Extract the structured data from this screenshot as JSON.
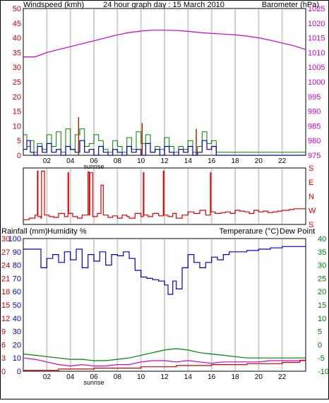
{
  "title": "24 hour graph day : 15 March 2010",
  "colors": {
    "wind": "#cc0000",
    "baro": "#cc00cc",
    "humidity": "#0000cc",
    "temp": "#008000",
    "rain": "#cc0000",
    "dew": "#cc0000",
    "windspeed": "#0000aa",
    "gust": "#008000",
    "gust_peak": "#993300",
    "direction": "#dd0000",
    "rain_line": "#cc0000",
    "temp_line": "#008000",
    "dew_line": "#cc00cc",
    "grid": "#d0d0d0",
    "frame": "#000000"
  },
  "x_ticks": [
    "02",
    "04",
    "06",
    "08",
    "10",
    "12",
    "14",
    "16",
    "18",
    "20",
    "22"
  ],
  "sunrise_label": "sunrise",
  "chart_data": [
    {
      "type": "line",
      "name": "wind-barometer",
      "left_label": "Windspeed (kmh)",
      "right_label": "Barometer (hPa)",
      "left_ticks": [
        "0",
        "5",
        "10",
        "15",
        "20",
        "25",
        "30",
        "35",
        "40",
        "45",
        "50"
      ],
      "right_ticks": [
        "975",
        "980",
        "985",
        "990",
        "995",
        "1000",
        "1005",
        "1010",
        "1015",
        "1020",
        "1025"
      ],
      "ylim_left": [
        0,
        50
      ],
      "ylim_right": [
        975,
        1025
      ],
      "xlim": [
        0,
        24
      ],
      "barometer": {
        "x": [
          0,
          1,
          2,
          3,
          4,
          5,
          6,
          7,
          8,
          9,
          10,
          11,
          12,
          13,
          14,
          15,
          16,
          17,
          18,
          19,
          20,
          21,
          22,
          23,
          24
        ],
        "y": [
          1008.5,
          1008.5,
          1010,
          1011,
          1012,
          1013,
          1014,
          1015,
          1016,
          1016.8,
          1017.3,
          1017.6,
          1017.6,
          1017.5,
          1017.2,
          1016.8,
          1016.5,
          1016.3,
          1016,
          1015.6,
          1015,
          1014.2,
          1013.2,
          1012.3,
          1011
        ]
      },
      "windspeed": {
        "x": [
          0,
          0.3,
          0.6,
          0.9,
          1.2,
          1.6,
          2,
          2.4,
          2.8,
          3.2,
          3.6,
          4,
          4.4,
          4.8,
          5.2,
          5.6,
          6,
          6.4,
          6.8,
          7.2,
          7.6,
          8,
          8.4,
          8.8,
          9.2,
          9.6,
          10,
          10.4,
          10.8,
          11.2,
          11.6,
          12,
          12.4,
          12.8,
          13.2,
          13.6,
          14,
          14.4,
          14.8,
          15.2,
          15.6,
          16,
          16.4,
          17,
          24
        ],
        "y": [
          2,
          5,
          1,
          0,
          3,
          1,
          4,
          1,
          2,
          0,
          3,
          2,
          1,
          5,
          1,
          2,
          0,
          3,
          1,
          0,
          2,
          1,
          0,
          3,
          1,
          2,
          0,
          4,
          1,
          2,
          0,
          3,
          1,
          0,
          2,
          1,
          3,
          0,
          1,
          5,
          2,
          3,
          0,
          0,
          0
        ]
      },
      "gust": {
        "x": [
          0,
          0.3,
          0.6,
          0.9,
          1.2,
          1.6,
          2,
          2.4,
          2.8,
          3.2,
          3.6,
          4,
          4.4,
          4.8,
          5.2,
          5.6,
          6,
          6.4,
          6.8,
          7.2,
          7.6,
          8,
          8.4,
          8.8,
          9.2,
          9.6,
          10,
          10.4,
          10.8,
          11.2,
          11.6,
          12,
          12.4,
          12.8,
          13.2,
          13.6,
          14,
          14.4,
          14.8,
          15.2,
          15.6,
          16,
          16.4,
          17,
          24
        ],
        "y": [
          7,
          3,
          5,
          1,
          4,
          2,
          7,
          3,
          8,
          1,
          9,
          2,
          7,
          9,
          3,
          4,
          7,
          5,
          2,
          1,
          5,
          3,
          1,
          6,
          2,
          8,
          4,
          7,
          1,
          3,
          2,
          6,
          3,
          1,
          3,
          2,
          5,
          1,
          3,
          8,
          4,
          5,
          1,
          1,
          1
        ]
      },
      "gust_peaks": [
        {
          "x": 4.7,
          "y": 13
        },
        {
          "x": 10.1,
          "y": 11
        },
        {
          "x": 14.7,
          "y": 9
        }
      ]
    },
    {
      "type": "line",
      "name": "wind-direction",
      "right_ticks": [
        "S",
        "E",
        "N",
        "W",
        "S"
      ],
      "ylim": [
        0,
        360
      ],
      "xlim": [
        0,
        24
      ],
      "x": [
        0,
        0.5,
        1,
        1.2,
        1.25,
        1.5,
        1.55,
        1.8,
        2.2,
        2.6,
        3,
        3.5,
        3.8,
        3.85,
        4.2,
        4.6,
        5,
        5.5,
        5.6,
        5.65,
        5.9,
        6.3,
        6.6,
        6.8,
        7.2,
        7.6,
        8,
        8.4,
        8.8,
        9,
        9.5,
        10,
        10.2,
        10.25,
        10.6,
        11,
        11.5,
        11.9,
        11.95,
        12.3,
        12.7,
        13,
        13.5,
        14,
        14.5,
        15,
        15.5,
        15.9,
        15.95,
        16.3,
        16.8,
        17.2,
        17.6,
        18,
        18.4,
        18.8,
        19.2,
        19.6,
        20,
        20.4,
        20.8,
        21.2,
        21.6,
        22,
        22.6,
        23,
        24
      ],
      "y": [
        30,
        40,
        60,
        340,
        50,
        40,
        340,
        60,
        50,
        45,
        70,
        50,
        330,
        70,
        50,
        40,
        60,
        335,
        60,
        330,
        50,
        70,
        250,
        60,
        45,
        55,
        40,
        60,
        50,
        40,
        70,
        50,
        330,
        60,
        50,
        70,
        55,
        340,
        60,
        50,
        70,
        40,
        60,
        80,
        70,
        90,
        60,
        330,
        80,
        70,
        75,
        80,
        70,
        90,
        85,
        80,
        70,
        90,
        80,
        85,
        75,
        80,
        85,
        90,
        95,
        100,
        100
      ]
    },
    {
      "type": "line",
      "name": "rain-humidity-temperature",
      "left_label_rain": "Rainfall (mm)",
      "left_label_humidity": "Humidity %",
      "right_label_temp": "Temperature (°C)",
      "right_label_dew": "Dew Point",
      "rain_ticks": [
        "0",
        "3",
        "6",
        "9",
        "12",
        "15",
        "18",
        "21",
        "24",
        "27",
        "30"
      ],
      "humidity_ticks": [
        "0",
        "10",
        "20",
        "30",
        "40",
        "50",
        "60",
        "70",
        "80",
        "90",
        "100"
      ],
      "temp_ticks": [
        "-10",
        "-5",
        "0",
        "5",
        "10",
        "15",
        "20",
        "25",
        "30",
        "35",
        "40"
      ],
      "ylim_humidity": [
        0,
        100
      ],
      "ylim_rain": [
        0,
        30
      ],
      "ylim_temp": [
        -10,
        40
      ],
      "xlim": [
        0,
        24
      ],
      "humidity": {
        "x": [
          0,
          1,
          1.5,
          2,
          2.5,
          3,
          3.5,
          4,
          4.5,
          5,
          5.5,
          6,
          6.5,
          7,
          7.5,
          8,
          8.5,
          9,
          9.5,
          10,
          10.5,
          11,
          11.5,
          12,
          12.3,
          12.7,
          13,
          13.5,
          14,
          14.5,
          15,
          15.5,
          16,
          16.5,
          17,
          17.5,
          18,
          19,
          20,
          21,
          22,
          23,
          24
        ],
        "y": [
          92,
          92,
          78,
          85,
          88,
          82,
          90,
          84,
          92,
          78,
          88,
          83,
          90,
          80,
          88,
          87,
          90,
          85,
          76,
          71,
          70,
          69,
          68,
          65,
          58,
          68,
          62,
          78,
          88,
          82,
          78,
          82,
          86,
          84,
          88,
          90,
          90,
          91,
          92,
          93,
          94,
          94,
          94
        ]
      },
      "temperature": {
        "x": [
          0,
          1,
          2,
          3,
          4,
          5,
          6,
          7,
          8,
          9,
          10,
          11,
          12,
          13,
          14,
          15,
          16,
          17,
          18,
          19,
          20,
          21,
          22,
          23,
          24
        ],
        "y": [
          -3.5,
          -4,
          -4.5,
          -5,
          -5.5,
          -5.5,
          -6,
          -6,
          -5.5,
          -5,
          -4,
          -3,
          -2,
          -1.5,
          -2,
          -3,
          -3.5,
          -4,
          -4.5,
          -5,
          -5,
          -5,
          -5,
          -5,
          -5
        ]
      },
      "dew_point": {
        "x": [
          0,
          1,
          2,
          3,
          4,
          5,
          6,
          7,
          8,
          9,
          10,
          11,
          12,
          13,
          14,
          15,
          16,
          17,
          18,
          19,
          20,
          21,
          22,
          23,
          24
        ],
        "y": [
          -5,
          -5.5,
          -6.5,
          -7.5,
          -8,
          -7.5,
          -8,
          -8,
          -7.5,
          -7.5,
          -6.5,
          -6,
          -6,
          -6.5,
          -6,
          -6.5,
          -7,
          -6.5,
          -6.5,
          -6.5,
          -6.5,
          -6,
          -6,
          -6,
          -6
        ]
      },
      "rain_total": {
        "x": [
          0,
          0.5,
          3,
          6,
          10,
          13,
          16,
          19,
          22,
          22.5,
          23.5,
          24
        ],
        "y": [
          0.2,
          0.2,
          0.5,
          0.7,
          1,
          1.3,
          1.5,
          1.7,
          2,
          2,
          2.5,
          2.5
        ]
      }
    }
  ]
}
